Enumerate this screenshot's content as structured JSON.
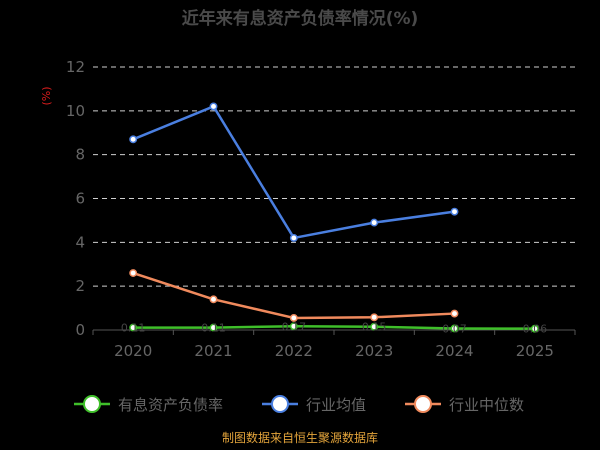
{
  "chart_data": {
    "type": "line",
    "title": "近年来有息资产负债率情况(%)",
    "ylabel": "(%)",
    "xlabel": "",
    "categories": [
      "2020",
      "2021",
      "2022",
      "2023",
      "2024",
      "2025"
    ],
    "ylim": [
      0,
      12
    ],
    "yticks": [
      0,
      2,
      4,
      6,
      8,
      10,
      12
    ],
    "grid": true,
    "legend_position": "bottom",
    "series": [
      {
        "name": "有息资产负债率",
        "color": "#3fbf2a",
        "values": [
          0.11,
          0.11,
          0.17,
          0.15,
          0.07,
          0.06
        ],
        "labels": [
          "0.11",
          "0.11",
          "0.17",
          "0.15",
          "0.07",
          "0.06"
        ]
      },
      {
        "name": "行业均值",
        "color": "#4a7fe0",
        "values": [
          8.7,
          10.2,
          4.2,
          4.9,
          5.4,
          null
        ]
      },
      {
        "name": "行业中位数",
        "color": "#f08a5d",
        "values": [
          2.6,
          1.4,
          0.55,
          0.58,
          0.75,
          null
        ]
      }
    ],
    "source": "制图数据来自恒生聚源数据库"
  }
}
